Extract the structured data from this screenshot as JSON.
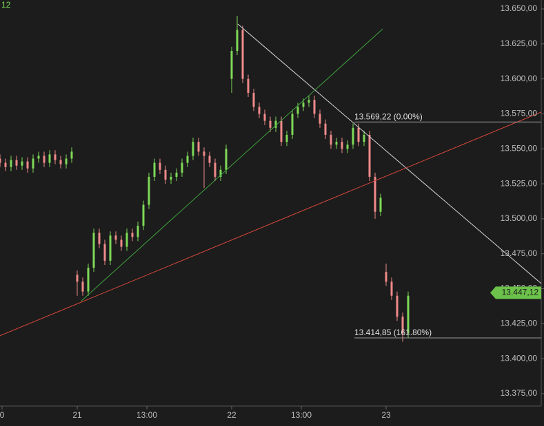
{
  "chart_data": {
    "type": "candlestick",
    "corner_label": "12",
    "up_color": "#7ed957",
    "down_color": "#f08a8a",
    "xlim": [
      0,
      196.25
    ],
    "ylim": [
      13375,
      13650
    ],
    "xticks": [
      {
        "value": 0.75,
        "label": "0"
      },
      {
        "value": 28,
        "label": "21"
      },
      {
        "value": 53.25,
        "label": "13:00"
      },
      {
        "value": 84,
        "label": "22"
      },
      {
        "value": 109.25,
        "label": "13:00"
      },
      {
        "value": 140,
        "label": "23"
      }
    ],
    "yticks": [
      {
        "value": 13375,
        "label": "13.375,00"
      },
      {
        "value": 13400,
        "label": "13.400,00"
      },
      {
        "value": 13425,
        "label": "13.425,00"
      },
      {
        "value": 13450,
        "label": "13.450,00"
      },
      {
        "value": 13475,
        "label": "13.475,00"
      },
      {
        "value": 13500,
        "label": "13.500,00"
      },
      {
        "value": 13525,
        "label": "13.525,00"
      },
      {
        "value": 13550,
        "label": "13.550,00"
      },
      {
        "value": 13575,
        "label": "13.575,00"
      },
      {
        "value": 13600,
        "label": "13.600,00"
      },
      {
        "value": 13625,
        "label": "13.625,00"
      },
      {
        "value": 13650,
        "label": "13.650,00"
      }
    ],
    "x": [
      0,
      2,
      4,
      6,
      8,
      10,
      12,
      14,
      16,
      18,
      20,
      22,
      24,
      26,
      28,
      30,
      32,
      34,
      36,
      38,
      40,
      42,
      44,
      46,
      48,
      50,
      52,
      54,
      56,
      58,
      60,
      62,
      64,
      66,
      68,
      70,
      72,
      74,
      76,
      78,
      80,
      82,
      84,
      86,
      88,
      90,
      92,
      94,
      96,
      98,
      100,
      102,
      104,
      106,
      108,
      110,
      112,
      114,
      116,
      118,
      120,
      122,
      124,
      126,
      128,
      130,
      132,
      134,
      136,
      138,
      140,
      142,
      144,
      146,
      148
    ],
    "open": [
      13543,
      13540,
      13537,
      13542,
      13538,
      13541,
      13536,
      13543,
      13545,
      13540,
      13546,
      13542,
      13539,
      13543,
      13460,
      13455,
      13448,
      13465,
      13490,
      13482,
      13470,
      13488,
      13485,
      13480,
      13490,
      13487,
      13495,
      13510,
      13530,
      13540,
      13535,
      13528,
      13530,
      13533,
      13540,
      13545,
      13555,
      13548,
      13545,
      13540,
      13530,
      13535,
      13600,
      13620,
      13635,
      13600,
      13590,
      13580,
      13575,
      13570,
      13565,
      13570,
      13555,
      13560,
      13575,
      13580,
      13583,
      13585,
      13575,
      13568,
      13560,
      13553,
      13555,
      13550,
      13553,
      13565,
      13555,
      13560,
      13530,
      13505,
      13462,
      13455,
      13445,
      13430,
      13418
    ],
    "high": [
      13546,
      13543,
      13545,
      13545,
      13544,
      13544,
      13546,
      13548,
      13548,
      13549,
      13549,
      13545,
      13546,
      13551,
      13463,
      13458,
      13468,
      13493,
      13493,
      13485,
      13491,
      13491,
      13488,
      13493,
      13493,
      13498,
      13513,
      13533,
      13543,
      13543,
      13538,
      13533,
      13536,
      13543,
      13548,
      13558,
      13558,
      13551,
      13548,
      13543,
      13538,
      13553,
      13623,
      13645,
      13638,
      13603,
      13593,
      13583,
      13578,
      13573,
      13573,
      13573,
      13563,
      13578,
      13583,
      13586,
      13588,
      13588,
      13578,
      13571,
      13563,
      13558,
      13558,
      13556,
      13568,
      13568,
      13563,
      13563,
      13533,
      13518,
      13468,
      13458,
      13448,
      13433,
      13448
    ],
    "low": [
      13537,
      13534,
      13534,
      13535,
      13535,
      13533,
      13533,
      13540,
      13537,
      13537,
      13539,
      13536,
      13536,
      13540,
      13445,
      13445,
      13445,
      13462,
      13479,
      13467,
      13467,
      13482,
      13477,
      13477,
      13484,
      13484,
      13492,
      13507,
      13527,
      13532,
      13525,
      13525,
      13527,
      13530,
      13537,
      13542,
      13545,
      13522,
      13537,
      13527,
      13527,
      13532,
      13590,
      13617,
      13597,
      13587,
      13577,
      13572,
      13567,
      13562,
      13562,
      13552,
      13552,
      13557,
      13572,
      13577,
      13580,
      13572,
      13565,
      13557,
      13550,
      13550,
      13547,
      13547,
      13550,
      13552,
      13552,
      13527,
      13500,
      13502,
      13452,
      13442,
      13427,
      13412,
      13415
    ],
    "close": [
      13540,
      13537,
      13542,
      13538,
      13541,
      13536,
      13543,
      13545,
      13540,
      13546,
      13542,
      13539,
      13543,
      13548,
      13455,
      13448,
      13465,
      13490,
      13482,
      13470,
      13488,
      13485,
      13480,
      13490,
      13487,
      13495,
      13510,
      13530,
      13540,
      13535,
      13528,
      13530,
      13533,
      13540,
      13545,
      13555,
      13548,
      13545,
      13540,
      13530,
      13535,
      13550,
      13620,
      13635,
      13600,
      13590,
      13580,
      13575,
      13570,
      13565,
      13570,
      13555,
      13560,
      13575,
      13580,
      13583,
      13585,
      13575,
      13568,
      13560,
      13553,
      13555,
      13550,
      13553,
      13565,
      13555,
      13560,
      13530,
      13505,
      13515,
      13455,
      13445,
      13430,
      13418,
      13445
    ],
    "trend_lines": [
      {
        "color": "#d8d8d8",
        "x": [
          86.25,
          196.25
        ],
        "y": [
          13639.2,
          13453.7
        ]
      },
      {
        "color": "#3fa33f",
        "x": [
          29.5,
          138.75
        ],
        "y": [
          13441.3,
          13635.7
        ]
      },
      {
        "color": "#d9483b",
        "x": [
          0,
          196.25
        ],
        "y": [
          13416.4,
          13576.3
        ]
      }
    ],
    "levels": [
      {
        "value": 13569.22,
        "label": "13.569,22 (0.00%)",
        "x": 128.5
      },
      {
        "value": 13414.85,
        "label": "13.414,85 (161.80%)",
        "x": 128.5
      }
    ],
    "last_price": {
      "value": 13447.12,
      "label": "13.447,12"
    }
  }
}
